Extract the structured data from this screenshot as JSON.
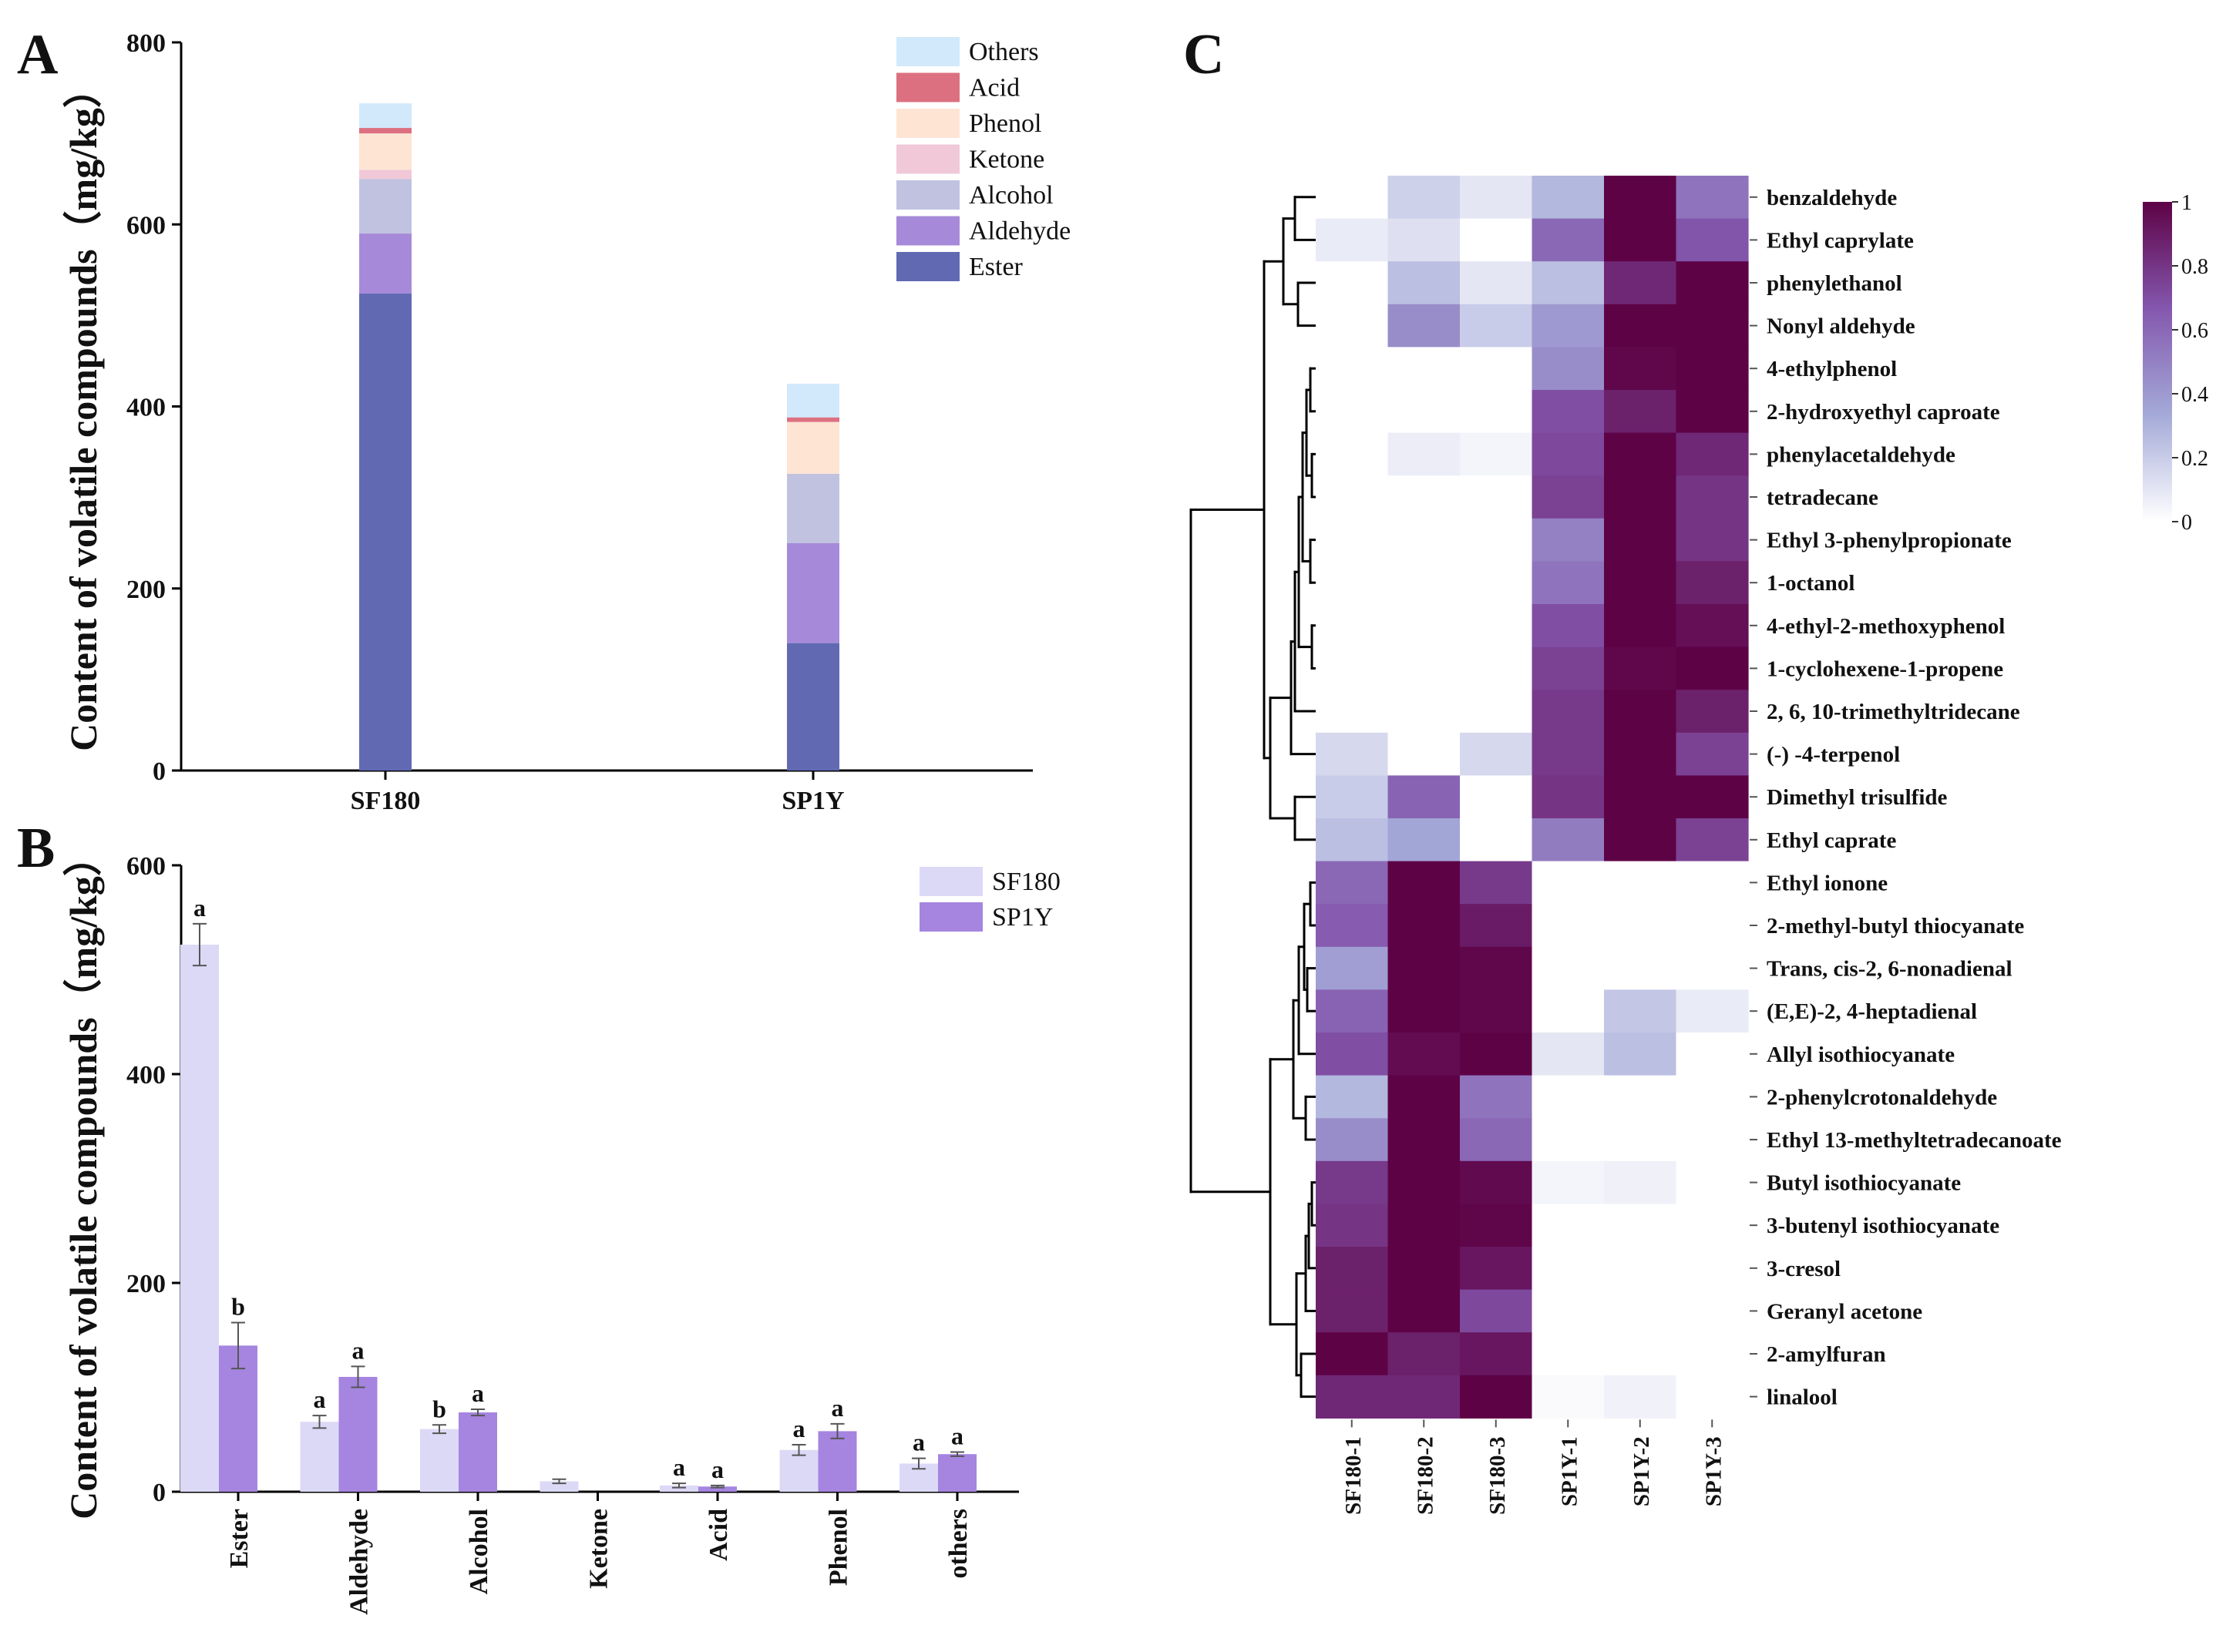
{
  "panels": {
    "a": "A",
    "b": "B",
    "c": "C"
  },
  "chart_data": [
    {
      "id": "A",
      "type": "bar",
      "stacked": true,
      "title": "",
      "xlabel": "",
      "ylabel": "Content of volatile compounds（mg/kg）",
      "ylim": [
        0,
        800
      ],
      "yticks": [
        0,
        200,
        400,
        600,
        800
      ],
      "categories": [
        "SF180",
        "SP1Y"
      ],
      "legend_position": "top-right",
      "series": [
        {
          "name": "Ester",
          "color": "#6169b3",
          "values": [
            524,
            140
          ]
        },
        {
          "name": "Aldehyde",
          "color": "#a68ad9",
          "values": [
            66,
            110
          ]
        },
        {
          "name": "Alcohol",
          "color": "#c0c2e0",
          "values": [
            60,
            76
          ]
        },
        {
          "name": "Ketone",
          "color": "#f1c8d7",
          "values": [
            10,
            0
          ]
        },
        {
          "name": "Phenol",
          "color": "#fde4d3",
          "values": [
            40,
            57
          ]
        },
        {
          "name": "Acid",
          "color": "#dc7080",
          "values": [
            6,
            5
          ]
        },
        {
          "name": "Others",
          "color": "#d2e9fb",
          "values": [
            27,
            37
          ]
        }
      ]
    },
    {
      "id": "B",
      "type": "bar",
      "title": "",
      "xlabel": "",
      "ylabel": "Content of volatile compounds（mg/kg）",
      "ylim": [
        0,
        600
      ],
      "yticks": [
        0,
        200,
        400,
        600
      ],
      "categories": [
        "Ester",
        "Aldehyde",
        "Alcohol",
        "Ketone",
        "Acid",
        "Phenol",
        "others"
      ],
      "legend_position": "top-right",
      "series": [
        {
          "name": "SF180",
          "color": "#dcd9f7",
          "values": [
            524,
            67,
            60,
            10,
            6,
            40,
            27
          ],
          "errors": [
            20,
            6,
            4,
            2,
            2,
            5,
            5
          ],
          "letters": [
            "a",
            "a",
            "b",
            "",
            "a",
            "a",
            "a"
          ]
        },
        {
          "name": "SP1Y",
          "color": "#a585df",
          "values": [
            140,
            110,
            76,
            0,
            5,
            58,
            36
          ],
          "errors": [
            22,
            10,
            3,
            0,
            1,
            7,
            2
          ],
          "letters": [
            "b",
            "a",
            "a",
            "",
            "a",
            "a",
            "a"
          ]
        }
      ]
    },
    {
      "id": "C",
      "type": "heatmap",
      "title": "",
      "columns": [
        "SF180-1",
        "SF180-2",
        "SF180-3",
        "SP1Y-1",
        "SP1Y-2",
        "SP1Y-3"
      ],
      "rows": [
        "benzaldehyde",
        "Ethyl caprylate",
        "phenylethanol",
        "Nonyl aldehyde",
        "4-ethylphenol",
        "2-hydroxyethyl caproate",
        "phenylacetaldehyde",
        "tetradecane",
        "Ethyl 3-phenylpropionate",
        "1-octanol",
        "4-ethyl-2-methoxyphenol",
        "1-cyclohexene-1-propene",
        "2, 6, 10-trimethyltridecane",
        "(-) -4-terpenol",
        "Dimethyl trisulfide",
        "Ethyl caprate",
        "Ethyl ionone",
        "2-methyl-butyl thiocyanate",
        "Trans, cis-2, 6-nonadienal",
        "(E,E)-2, 4-heptadienal",
        "Allyl isothiocyanate",
        "2-phenylcrotonaldehyde",
        "Ethyl 13-methyltetradecanoate",
        "Butyl isothiocyanate",
        "3-butenyl isothiocyanate",
        "3-cresol",
        "Geranyl acetone",
        "2-amylfuran",
        "linalool"
      ],
      "values": [
        [
          0,
          0.18,
          0.1,
          0.28,
          1,
          0.55
        ],
        [
          0.08,
          0.12,
          0,
          0.6,
          1,
          0.68
        ],
        [
          0,
          0.25,
          0.1,
          0.25,
          0.85,
          1
        ],
        [
          0,
          0.45,
          0.2,
          0.4,
          1,
          1
        ],
        [
          0,
          0,
          0,
          0.45,
          0.98,
          1
        ],
        [
          0,
          0,
          0,
          0.7,
          0.88,
          1
        ],
        [
          0,
          0.07,
          0.04,
          0.72,
          1,
          0.85
        ],
        [
          0,
          0,
          0,
          0.75,
          1,
          0.8
        ],
        [
          0,
          0,
          0,
          0.5,
          1,
          0.8
        ],
        [
          0,
          0,
          0,
          0.55,
          1,
          0.88
        ],
        [
          0,
          0,
          0,
          0.7,
          1,
          0.95
        ],
        [
          0,
          0,
          0,
          0.75,
          0.98,
          1
        ],
        [
          0,
          0,
          0,
          0.78,
          1,
          0.88
        ],
        [
          0.15,
          0,
          0.15,
          0.78,
          1,
          0.75
        ],
        [
          0.2,
          0.62,
          0,
          0.8,
          1,
          1
        ],
        [
          0.25,
          0.35,
          0,
          0.52,
          1,
          0.75
        ],
        [
          0.6,
          1,
          0.78,
          0,
          0,
          0
        ],
        [
          0.65,
          1,
          0.9,
          0,
          0,
          0
        ],
        [
          0.38,
          1,
          0.98,
          0,
          0,
          0
        ],
        [
          0.62,
          1,
          0.98,
          0,
          0.22,
          0.08
        ],
        [
          0.7,
          0.96,
          1,
          0.1,
          0.25,
          0
        ],
        [
          0.28,
          1,
          0.55,
          0,
          0,
          0
        ],
        [
          0.45,
          1,
          0.6,
          0,
          0,
          0
        ],
        [
          0.78,
          1,
          0.97,
          0.04,
          0.06,
          0
        ],
        [
          0.8,
          1,
          0.99,
          0,
          0,
          0
        ],
        [
          0.88,
          1,
          0.92,
          0,
          0,
          0
        ],
        [
          0.88,
          1,
          0.72,
          0,
          0,
          0
        ],
        [
          1,
          0.88,
          0.92,
          0,
          0,
          0
        ],
        [
          0.85,
          0.85,
          1,
          0.02,
          0.05,
          0
        ]
      ],
      "colorbar": {
        "min": 0,
        "max": 1,
        "ticks": [
          "0",
          "0.2",
          "0.4",
          "0.6",
          "0.8",
          "1"
        ],
        "colors": [
          "#ffffff",
          "#a4aad8",
          "#8457ae",
          "#5e0246"
        ]
      },
      "row_clusters": [
        [
          0,
          15
        ],
        [
          16,
          28
        ]
      ]
    }
  ]
}
